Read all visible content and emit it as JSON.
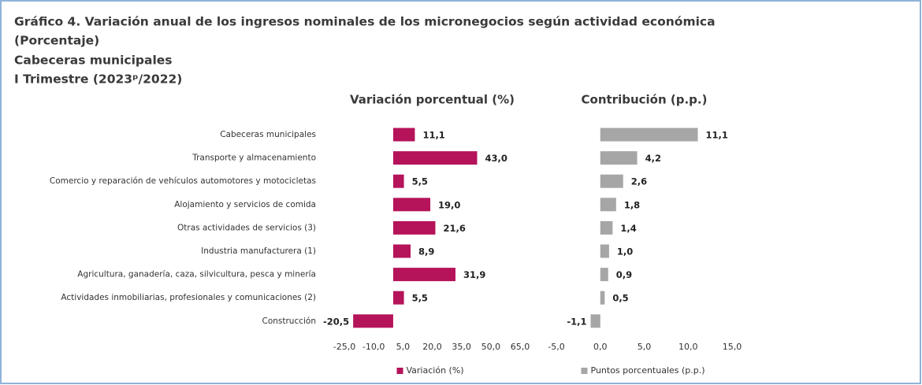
{
  "header": {
    "title_lines": [
      "Gráfico 4. Variación anual de los ingresos nominales de los micronegocios según actividad económica",
      "(Porcentaje)",
      "Cabeceras municipales",
      "I Trimestre (2023ᵖ/2022)"
    ]
  },
  "chart_data": [
    {
      "type": "bar",
      "orientation": "horizontal",
      "title": "Variación porcentual (%)",
      "categories": [
        "Cabeceras municipales",
        "Transporte y almacenamiento",
        "Comercio y reparación de vehículos automotores y motocicletas",
        "Alojamiento y servicios de comida",
        "Otras actividades de servicios (3)",
        "Industria manufacturera (1)",
        "Agricultura, ganadería, caza, silvicultura, pesca y minería",
        "Actividades inmobiliarias, profesionales y comunicaciones (2)",
        "Construcción"
      ],
      "series": [
        {
          "name": "Variación (%)",
          "color": "#b5135a",
          "values": [
            11.1,
            43.0,
            5.5,
            19.0,
            21.6,
            8.9,
            31.9,
            5.5,
            -20.5
          ],
          "value_labels": [
            "11,1",
            "43,0",
            "5,5",
            "19,0",
            "21,6",
            "8,9",
            "31,9",
            "5,5",
            "-20,5"
          ]
        }
      ],
      "xlim": [
        -25,
        65
      ],
      "xticks": [
        {
          "value": -25,
          "label": "-25,0"
        },
        {
          "value": -10,
          "label": "-10,0"
        },
        {
          "value": 5,
          "label": "5,0"
        },
        {
          "value": 20,
          "label": "20,0"
        },
        {
          "value": 35,
          "label": "35,0"
        },
        {
          "value": 50,
          "label": "50,0"
        },
        {
          "value": 65,
          "label": "65,0"
        }
      ],
      "legend": "bottom"
    },
    {
      "type": "bar",
      "orientation": "horizontal",
      "title": "Contribución (p.p.)",
      "series": [
        {
          "name": "Puntos porcentuales (p.p.)",
          "color": "#a6a6a6",
          "values": [
            11.1,
            4.2,
            2.6,
            1.8,
            1.4,
            1.0,
            0.9,
            0.5,
            -1.1
          ],
          "value_labels": [
            "11,1",
            "4,2",
            "2,6",
            "1,8",
            "1,4",
            "1,0",
            "0,9",
            "0,5",
            "-1,1"
          ]
        }
      ],
      "xlim": [
        -5,
        15
      ],
      "xticks": [
        {
          "value": -5,
          "label": "-5,0"
        },
        {
          "value": 0,
          "label": "0,0"
        },
        {
          "value": 5,
          "label": "5,0"
        },
        {
          "value": 10,
          "label": "10,0"
        },
        {
          "value": 15,
          "label": "15,0"
        }
      ],
      "legend": "bottom"
    }
  ]
}
